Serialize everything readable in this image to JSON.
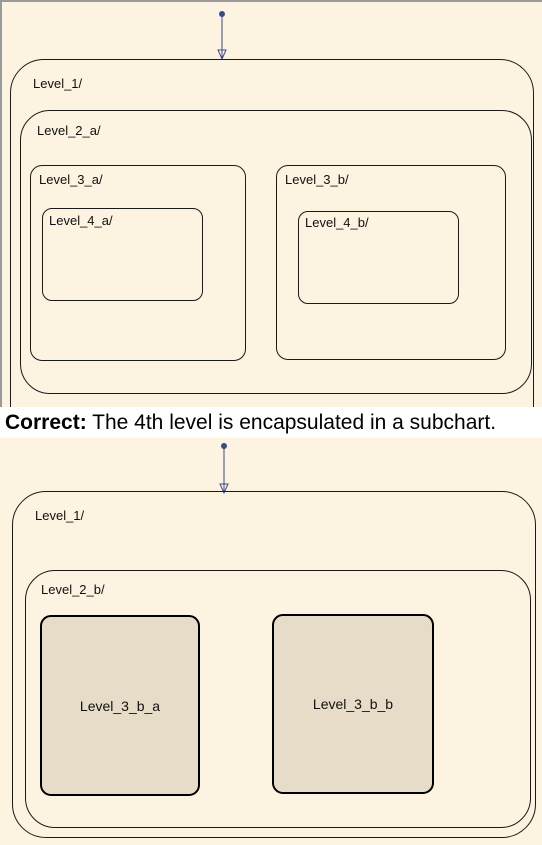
{
  "top_chart": {
    "level_1": "Level_1/",
    "level_2_a": "Level_2_a/",
    "level_3_a": "Level_3_a/",
    "level_3_b": "Level_3_b/",
    "level_4_a": "Level_4_a/",
    "level_4_b": "Level_4_b/"
  },
  "caption": {
    "prefix": "Correct:",
    "text": " The 4th level is encapsulated in a subchart."
  },
  "bottom_chart": {
    "level_1": "Level_1/",
    "level_2_b": "Level_2_b/",
    "subchart_a": "Level_3_b_a",
    "subchart_b": "Level_3_b_b"
  },
  "colors": {
    "background": "#fdf3e1",
    "subchart_fill": "#e6dcc8",
    "arrow": "#3a4a8a"
  }
}
